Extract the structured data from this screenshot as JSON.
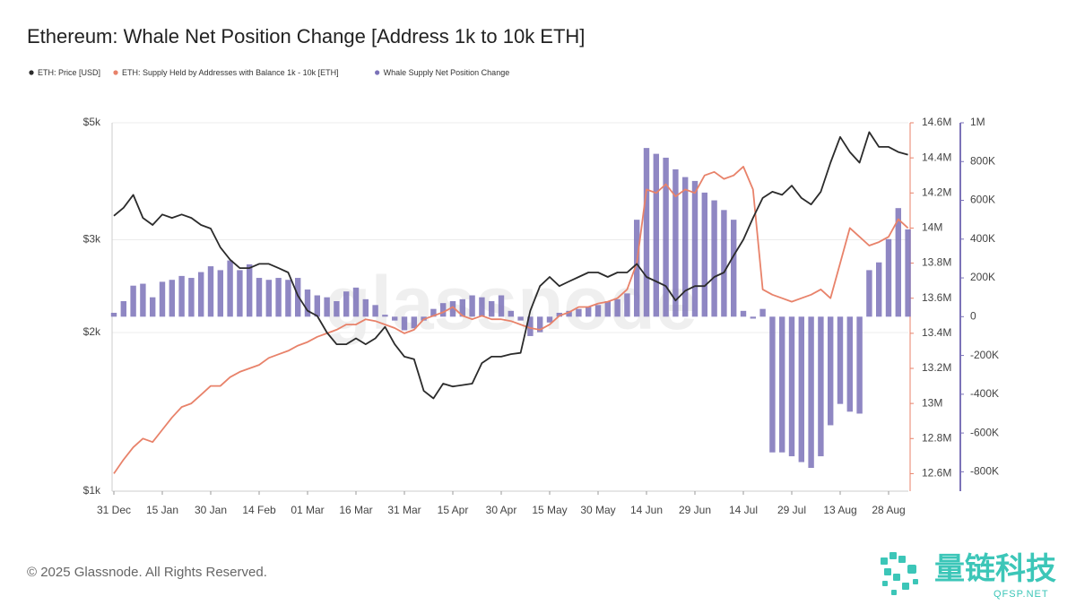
{
  "chart_data": {
    "type": "combo",
    "title": "Ethereum: Whale Net Position Change [Address 1k to 10k ETH]",
    "watermark": "glassnode",
    "categories": [
      "31 Dec",
      null,
      null,
      null,
      null,
      "15 Jan",
      null,
      null,
      null,
      null,
      "30 Jan",
      null,
      null,
      null,
      null,
      "14 Feb",
      null,
      null,
      null,
      null,
      "01 Mar",
      null,
      null,
      null,
      null,
      "16 Mar",
      null,
      null,
      null,
      null,
      "31 Mar",
      null,
      null,
      null,
      null,
      "15 Apr",
      null,
      null,
      null,
      null,
      "30 Apr",
      null,
      null,
      null,
      null,
      "15 May",
      null,
      null,
      null,
      null,
      "30 May",
      null,
      null,
      null,
      null,
      "14 Jun",
      null,
      null,
      null,
      null,
      "29 Jun",
      null,
      null,
      null,
      null,
      "14 Jul",
      null,
      null,
      null,
      null,
      "29 Jul",
      null,
      null,
      null,
      null,
      "13 Aug",
      null,
      null,
      null,
      null,
      "28 Aug",
      null,
      null
    ],
    "log_scale": true,
    "grid": true,
    "ylim": [
      1000,
      5000
    ],
    "yticks": [
      {
        "value": 1000,
        "label": "$1k"
      },
      {
        "value": 2000,
        "label": "$2k"
      },
      {
        "value": 3000,
        "label": "$3k"
      },
      {
        "value": 5000,
        "label": "$5k"
      }
    ],
    "y2lim": [
      12500000,
      14600000
    ],
    "y2ticks": [
      {
        "value": 12600000,
        "label": "12.6M"
      },
      {
        "value": 12800000,
        "label": "12.8M"
      },
      {
        "value": 13000000,
        "label": "13M"
      },
      {
        "value": 13200000,
        "label": "13.2M"
      },
      {
        "value": 13400000,
        "label": "13.4M"
      },
      {
        "value": 13600000,
        "label": "13.6M"
      },
      {
        "value": 13800000,
        "label": "13.8M"
      },
      {
        "value": 14000000,
        "label": "14M"
      },
      {
        "value": 14200000,
        "label": "14.2M"
      },
      {
        "value": 14400000,
        "label": "14.4M"
      },
      {
        "value": 14600000,
        "label": "14.6M"
      }
    ],
    "y3lim": [
      -900000,
      1000000
    ],
    "y3ticks": [
      {
        "value": -800000,
        "label": "-800K"
      },
      {
        "value": -600000,
        "label": "-600K"
      },
      {
        "value": -400000,
        "label": "-400K"
      },
      {
        "value": -200000,
        "label": "-200K"
      },
      0,
      {
        "value": 200000,
        "label": "200K"
      },
      {
        "value": 400000,
        "label": "400K"
      },
      {
        "value": 600000,
        "label": "600K"
      },
      {
        "value": 800000,
        "label": "800K"
      },
      {
        "value": 1000000,
        "label": "1M"
      }
    ],
    "series": [
      {
        "name": "ETH: Price [USD]",
        "color": "#2b2b2b",
        "type": "line",
        "axis": "y",
        "values": [
          3330,
          3450,
          3650,
          3300,
          3200,
          3350,
          3300,
          3350,
          3300,
          3200,
          3150,
          2900,
          2750,
          2650,
          2650,
          2700,
          2700,
          2650,
          2600,
          2350,
          2200,
          2150,
          2000,
          1900,
          1900,
          1950,
          1900,
          1950,
          2050,
          1900,
          1800,
          1780,
          1550,
          1500,
          1600,
          1580,
          1590,
          1600,
          1750,
          1800,
          1800,
          1820,
          1830,
          2200,
          2450,
          2550,
          2450,
          2500,
          2550,
          2600,
          2600,
          2550,
          2600,
          2600,
          2700,
          2550,
          2500,
          2450,
          2300,
          2400,
          2450,
          2450,
          2550,
          2600,
          2800,
          3000,
          3300,
          3600,
          3700,
          3650,
          3800,
          3600,
          3500,
          3700,
          4200,
          4700,
          4400,
          4200,
          4800,
          4500,
          4500,
          4400,
          4350
        ]
      },
      {
        "name": "ETH: Supply Held by Addresses with Balance 1k - 10k [ETH]",
        "color": "#e8826a",
        "type": "line",
        "axis": "y2",
        "values": [
          12600000,
          12680000,
          12750000,
          12800000,
          12780000,
          12850000,
          12920000,
          12980000,
          13000000,
          13050000,
          13100000,
          13100000,
          13150000,
          13180000,
          13200000,
          13220000,
          13260000,
          13280000,
          13300000,
          13330000,
          13350000,
          13380000,
          13400000,
          13420000,
          13450000,
          13450000,
          13480000,
          13470000,
          13450000,
          13430000,
          13400000,
          13420000,
          13480000,
          13500000,
          13520000,
          13550000,
          13500000,
          13480000,
          13500000,
          13480000,
          13480000,
          13470000,
          13450000,
          13430000,
          13420000,
          13450000,
          13500000,
          13520000,
          13550000,
          13550000,
          13570000,
          13580000,
          13600000,
          13650000,
          13800000,
          14220000,
          14200000,
          14250000,
          14180000,
          14220000,
          14200000,
          14300000,
          14320000,
          14280000,
          14300000,
          14350000,
          14220000,
          13650000,
          13620000,
          13600000,
          13580000,
          13600000,
          13620000,
          13650000,
          13600000,
          13800000,
          14000000,
          13950000,
          13900000,
          13920000,
          13950000,
          14050000,
          14000000
        ]
      },
      {
        "name": "Whale Supply Net Position Change",
        "color": "#7b72b8",
        "type": "bar",
        "axis": "y3",
        "values": [
          20000,
          80000,
          160000,
          170000,
          100000,
          180000,
          190000,
          210000,
          200000,
          230000,
          260000,
          240000,
          290000,
          240000,
          270000,
          200000,
          190000,
          200000,
          190000,
          200000,
          140000,
          110000,
          100000,
          80000,
          130000,
          150000,
          90000,
          60000,
          10000,
          -20000,
          -70000,
          -60000,
          -20000,
          40000,
          70000,
          80000,
          90000,
          110000,
          100000,
          80000,
          110000,
          30000,
          -20000,
          -100000,
          -80000,
          -30000,
          20000,
          30000,
          40000,
          50000,
          60000,
          80000,
          90000,
          120000,
          500000,
          870000,
          840000,
          820000,
          760000,
          720000,
          700000,
          640000,
          600000,
          550000,
          500000,
          30000,
          -10000,
          40000,
          -700000,
          -700000,
          -720000,
          -750000,
          -780000,
          -720000,
          -560000,
          -450000,
          -490000,
          -500000,
          240000,
          280000,
          400000,
          560000,
          450000
        ]
      }
    ]
  },
  "footer": {
    "copyright": "© 2025 Glassnode. All Rights Reserved."
  },
  "logo": {
    "name": "量链科技",
    "site": "QFSP.NET"
  }
}
